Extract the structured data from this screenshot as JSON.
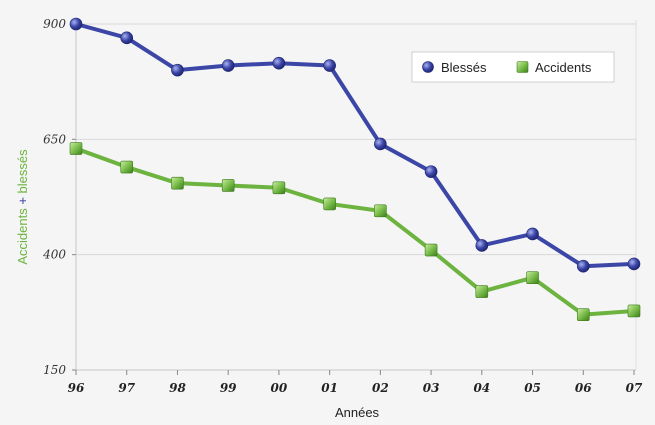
{
  "colors": {
    "blesses": "#3b46a6",
    "accidents": "#6db33f",
    "ylabel_main": "#6db33f",
    "ylabel_plus": "#2f3aa0",
    "grid": "#d9d9d9",
    "axis": "#c8c8c8"
  },
  "chart_data": {
    "type": "line",
    "title": "",
    "xlabel": "Années",
    "ylabel_parts": [
      {
        "text": "Accidents",
        "color": "accidents"
      },
      {
        "text": " + ",
        "color": "plus"
      },
      {
        "text": "blessés",
        "color": "accidents"
      }
    ],
    "categories": [
      "96",
      "97",
      "98",
      "99",
      "00",
      "01",
      "02",
      "03",
      "04",
      "05",
      "06",
      "07"
    ],
    "ylim": [
      150,
      900
    ],
    "yticks": [
      150,
      400,
      650,
      900
    ],
    "grid": true,
    "legend_position": "top-right",
    "series": [
      {
        "name": "Blessés",
        "marker": "circle",
        "values": [
          900,
          870,
          800,
          810,
          815,
          810,
          640,
          580,
          420,
          445,
          375,
          380
        ]
      },
      {
        "name": "Accidents",
        "marker": "square",
        "values": [
          630,
          590,
          555,
          550,
          545,
          510,
          495,
          410,
          320,
          350,
          270,
          278
        ]
      }
    ]
  }
}
